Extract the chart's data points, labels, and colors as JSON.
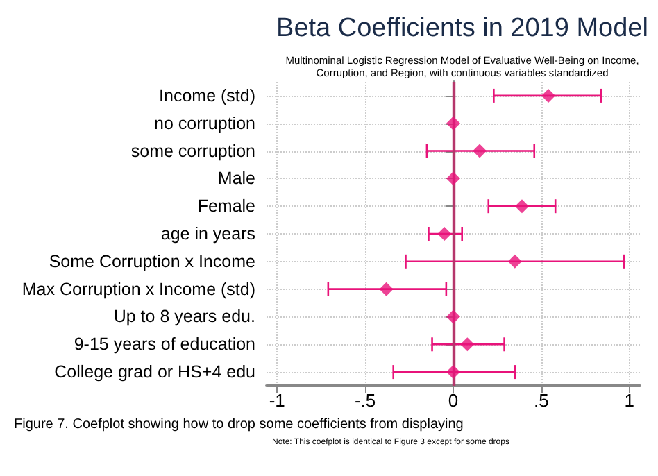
{
  "chart_data": {
    "type": "scatter",
    "orientation": "horizontal",
    "title": "Beta Coefficients in 2019 Model",
    "subtitle": "Multinominal Logistic Regression Model of Evaluative Well-Being on Income,\nCorruption, and Region, with continuous variables standardized",
    "categories": [
      "Income (std)",
      "no corruption",
      "some corruption",
      "Male",
      "Female",
      "age in years",
      "Some Corruption x Income",
      "Max Corruption x Income (std)",
      "Up to 8 years edu.",
      "9-15 years of education",
      "College grad or HS+4 edu"
    ],
    "series": [
      {
        "color": "#e8137a",
        "values": [
          0.54,
          0,
          0.15,
          0,
          0.39,
          -0.05,
          0.35,
          -0.38,
          0,
          0.08,
          0
        ],
        "errors": [
          [
            0.23,
            0.84
          ],
          null,
          [
            -0.15,
            0.46
          ],
          null,
          [
            0.2,
            0.58
          ],
          [
            -0.14,
            0.05
          ],
          [
            -0.27,
            0.97
          ],
          [
            -0.71,
            -0.04
          ],
          null,
          [
            -0.12,
            0.29
          ],
          [
            -0.34,
            0.35
          ]
        ]
      }
    ],
    "xlim": [
      -1.06,
      1.06
    ],
    "xticks": [
      {
        "value": -1,
        "label": "-1"
      },
      {
        "value": -0.5,
        "label": "-.5"
      },
      {
        "value": 0,
        "label": "0"
      },
      {
        "value": 0.5,
        "label": ".5"
      },
      {
        "value": 1,
        "label": "1"
      }
    ],
    "ref_lines": [
      {
        "axis": "x",
        "value": 0,
        "color": "#b5366b"
      }
    ],
    "grid": true,
    "marker": "diamond",
    "annotations": [
      "Figure 7. Coefplot showing how to drop some coefficients from displaying",
      "Note: This coefplot is identical to Figure 3 except for some drops"
    ]
  }
}
